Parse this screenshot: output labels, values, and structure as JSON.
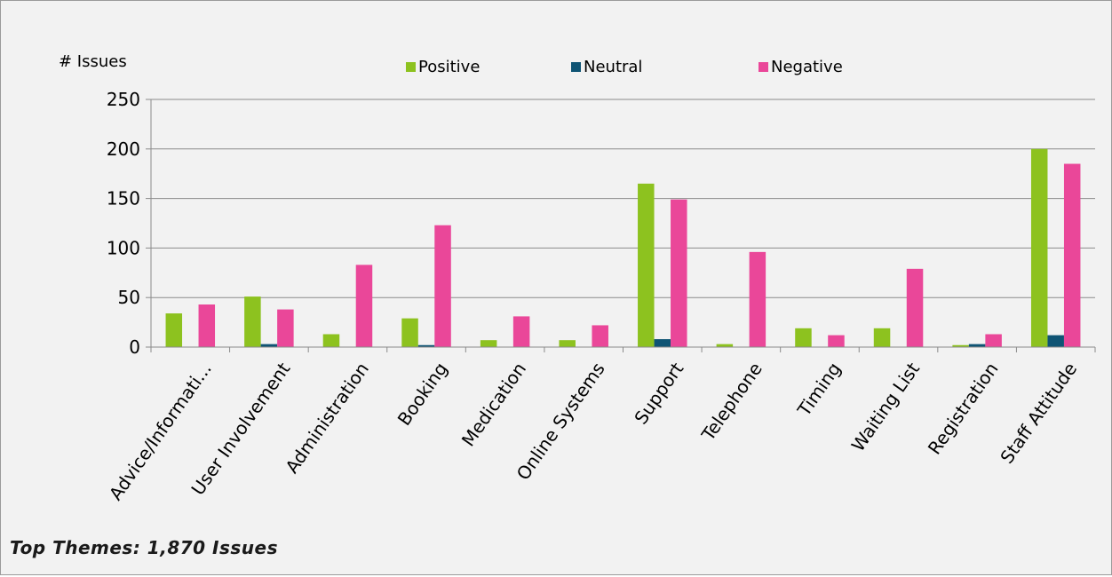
{
  "chart_data": {
    "type": "bar",
    "ylabel": "# Issues",
    "ylim": [
      0,
      250
    ],
    "yticks": [
      0,
      50,
      100,
      150,
      200,
      250
    ],
    "grid": true,
    "legend_position": "top-center",
    "categories": [
      "Advice/Informati...",
      "User Involvement",
      "Administration",
      "Booking",
      "Medication",
      "Online Systems",
      "Support",
      "Telephone",
      "Timing",
      "Waiting List",
      "Registration",
      "Staff Attitude"
    ],
    "series": [
      {
        "name": "Positive",
        "color": "#8dc21f",
        "values": [
          34,
          51,
          13,
          29,
          7,
          7,
          165,
          3,
          19,
          19,
          2,
          200
        ]
      },
      {
        "name": "Neutral",
        "color": "#0f5474",
        "values": [
          0,
          3,
          0,
          2,
          0,
          0,
          8,
          0,
          0,
          0,
          3,
          12
        ]
      },
      {
        "name": "Negative",
        "color": "#ea4799",
        "values": [
          43,
          38,
          83,
          123,
          31,
          22,
          149,
          96,
          12,
          79,
          13,
          185
        ]
      }
    ]
  },
  "caption": "Top Themes: 1,870 Issues"
}
